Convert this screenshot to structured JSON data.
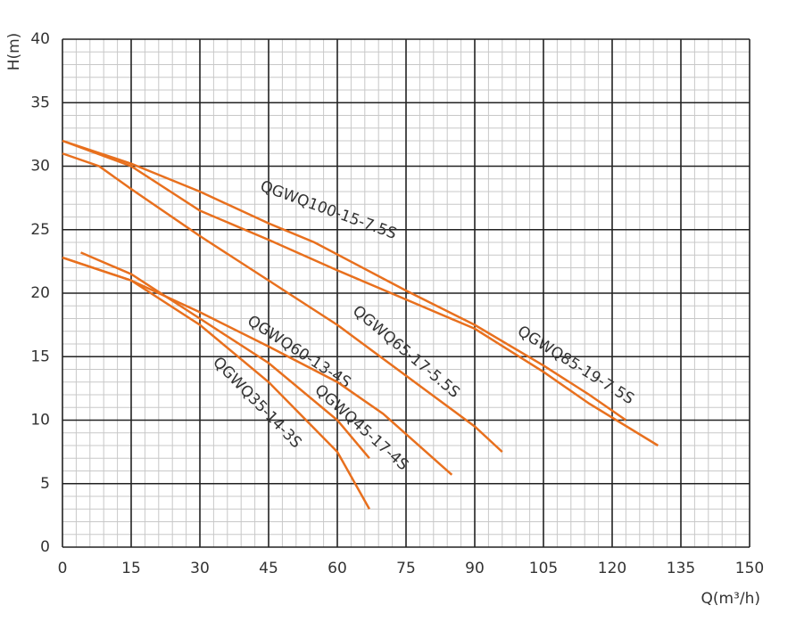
{
  "chart_data": {
    "type": "line",
    "ylabel": "H(m)",
    "xlabel": "Q(m³/h)",
    "xlim": [
      0,
      150
    ],
    "ylim": [
      0,
      40
    ],
    "xticks": [
      0,
      15,
      30,
      45,
      60,
      75,
      90,
      105,
      120,
      135,
      150
    ],
    "yticks": [
      0,
      5,
      10,
      15,
      20,
      25,
      30,
      35,
      40
    ],
    "grid": true,
    "series": [
      {
        "name": "QGWQ100-15-7.5S",
        "color": "#e8701e",
        "x": [
          0,
          15,
          30,
          45,
          60,
          75,
          90,
          105,
          115,
          130
        ],
        "values": [
          32,
          30,
          26.5,
          24.2,
          21.8,
          19.5,
          17.2,
          13.8,
          11.3,
          8
        ]
      },
      {
        "name": "QGWQ85-19-7.5S",
        "color": "#e8701e",
        "x": [
          0,
          15,
          30,
          45,
          55,
          75,
          90,
          105,
          115,
          123
        ],
        "values": [
          32,
          30.2,
          28,
          25.5,
          24,
          20.2,
          17.5,
          14.3,
          12,
          10
        ]
      },
      {
        "name": "QGWQ65-17-5.5S",
        "color": "#e8701e",
        "x": [
          0,
          8,
          15,
          30,
          45,
          60,
          75,
          90,
          96
        ],
        "values": [
          31,
          30,
          28.2,
          24.5,
          21,
          17.5,
          13.5,
          9.5,
          7.5
        ]
      },
      {
        "name": "QGWQ60-13-4S",
        "color": "#e8701e",
        "x": [
          4,
          15,
          30,
          45,
          60,
          67
        ],
        "values": [
          23.2,
          21.5,
          18,
          14.5,
          10,
          7
        ]
      },
      {
        "name": "QGWQ45-17-4S",
        "color": "#e8701e",
        "x": [
          0,
          15,
          30,
          45,
          60,
          70,
          85
        ],
        "values": [
          22.8,
          21,
          18.5,
          15.8,
          13,
          10.5,
          5.7
        ]
      },
      {
        "name": "QGWQ35-14-3S",
        "color": "#e8701e",
        "x": [
          0,
          15,
          30,
          45,
          60,
          67
        ],
        "values": [
          22.8,
          21,
          17.5,
          13,
          7.5,
          3
        ]
      }
    ]
  }
}
